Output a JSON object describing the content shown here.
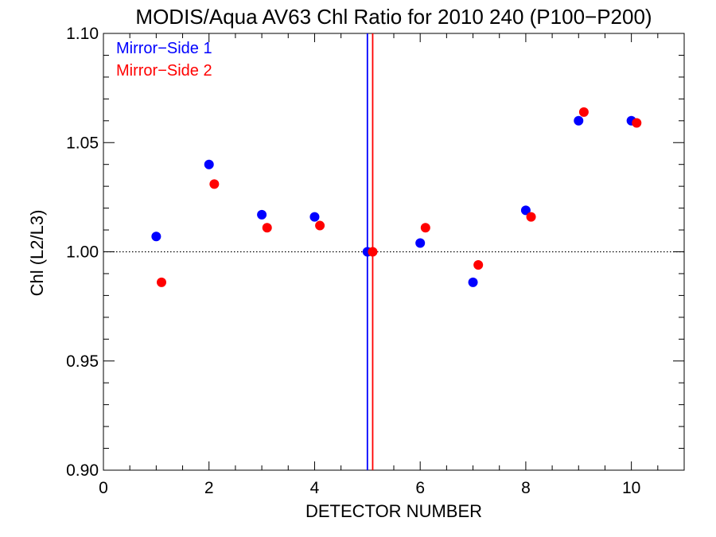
{
  "chart_data": {
    "type": "scatter",
    "title": "MODIS/Aqua AV63 Chl Ratio for 2010 240 (P100−P200)",
    "xlabel": "DETECTOR NUMBER",
    "ylabel": "Chl (L2/L3)",
    "xlim": [
      0,
      11
    ],
    "ylim": [
      0.9,
      1.1
    ],
    "x_ticks": [
      0,
      2,
      4,
      6,
      8,
      10
    ],
    "x_tick_labels": [
      "0",
      "2",
      "4",
      "6",
      "8",
      "10"
    ],
    "y_ticks": [
      0.9,
      0.95,
      1.0,
      1.05,
      1.1
    ],
    "y_tick_labels": [
      "0.90",
      "0.95",
      "1.00",
      "1.05",
      "1.10"
    ],
    "reference_line_y": 1.0,
    "legend_position": "top-left",
    "series": [
      {
        "name": "Mirror−Side 1",
        "color": "#0000ff",
        "x": [
          1,
          2,
          3,
          4,
          5,
          6,
          7,
          8,
          9,
          10
        ],
        "y": [
          1.007,
          1.04,
          1.017,
          1.016,
          1.0,
          1.004,
          0.986,
          1.019,
          1.06,
          1.06
        ],
        "vline_x": 5.0
      },
      {
        "name": "Mirror−Side 2",
        "color": "#ff0000",
        "x": [
          1.1,
          2.1,
          3.1,
          4.1,
          5.1,
          6.1,
          7.1,
          8.1,
          9.1,
          10.1
        ],
        "y": [
          0.986,
          1.031,
          1.011,
          1.012,
          1.0,
          1.011,
          0.994,
          1.016,
          1.064,
          1.059
        ],
        "vline_x": 5.1
      }
    ]
  }
}
